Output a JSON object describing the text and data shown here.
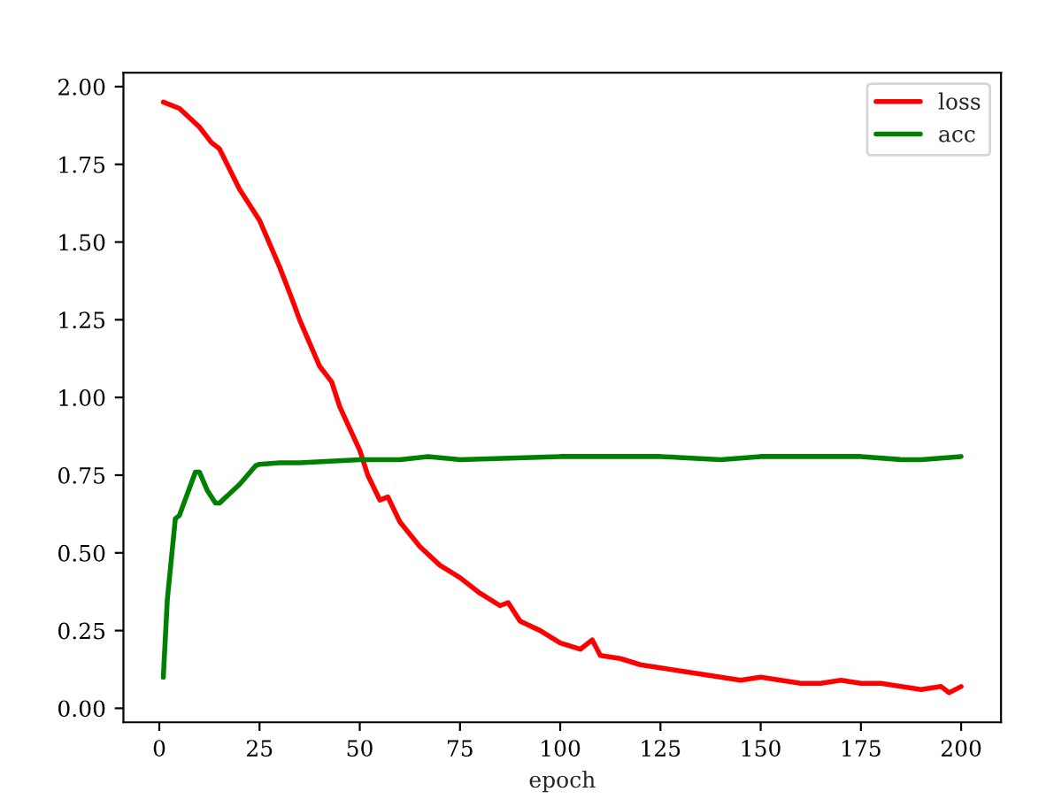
{
  "chart_data": {
    "type": "line",
    "xlabel": "epoch",
    "xlim": [
      -8.95,
      209.95
    ],
    "xticks": [
      0,
      25,
      50,
      75,
      100,
      125,
      150,
      175,
      200
    ],
    "ylim": [
      -0.045,
      2.045
    ],
    "yticks": [
      {
        "value": 0,
        "label": "0.00"
      },
      {
        "value": 0.25,
        "label": "0.25"
      },
      {
        "value": 0.5,
        "label": "0.50"
      },
      {
        "value": 0.75,
        "label": "0.75"
      },
      {
        "value": 1.0,
        "label": "1.00"
      },
      {
        "value": 1.25,
        "label": "1.25"
      },
      {
        "value": 1.5,
        "label": "1.50"
      },
      {
        "value": 1.75,
        "label": "1.75"
      },
      {
        "value": 2.0,
        "label": "2.00"
      }
    ],
    "grid": false,
    "legend": "top right",
    "marker": "none",
    "line_style": "solid",
    "series": [
      {
        "name": "loss",
        "color": "#ff0000",
        "x": [
          1,
          5,
          10,
          13,
          15,
          20,
          25,
          30,
          33,
          35,
          40,
          43,
          45,
          50,
          52,
          55,
          57,
          60,
          65,
          70,
          75,
          80,
          85,
          87,
          90,
          95,
          100,
          105,
          108,
          110,
          115,
          120,
          125,
          130,
          135,
          140,
          145,
          150,
          155,
          160,
          165,
          170,
          175,
          180,
          185,
          190,
          195,
          197,
          200
        ],
        "values": [
          1.95,
          1.93,
          1.87,
          1.82,
          1.8,
          1.67,
          1.57,
          1.42,
          1.32,
          1.25,
          1.1,
          1.05,
          0.97,
          0.83,
          0.75,
          0.67,
          0.68,
          0.6,
          0.52,
          0.46,
          0.42,
          0.37,
          0.33,
          0.34,
          0.28,
          0.25,
          0.21,
          0.19,
          0.22,
          0.17,
          0.16,
          0.14,
          0.13,
          0.12,
          0.11,
          0.1,
          0.09,
          0.1,
          0.09,
          0.08,
          0.08,
          0.09,
          0.08,
          0.08,
          0.07,
          0.06,
          0.07,
          0.05,
          0.07
        ]
      },
      {
        "name": "acc",
        "color": "#008000",
        "x": [
          1,
          2,
          4,
          5,
          7,
          9,
          10,
          12,
          14,
          15,
          20,
          24,
          25,
          30,
          35,
          50,
          60,
          67,
          75,
          100,
          110,
          125,
          140,
          150,
          175,
          185,
          190,
          200
        ],
        "values": [
          0.1,
          0.35,
          0.61,
          0.62,
          0.69,
          0.76,
          0.76,
          0.7,
          0.66,
          0.66,
          0.72,
          0.78,
          0.785,
          0.79,
          0.79,
          0.8,
          0.8,
          0.81,
          0.8,
          0.81,
          0.81,
          0.81,
          0.8,
          0.81,
          0.81,
          0.8,
          0.8,
          0.81
        ]
      }
    ]
  }
}
